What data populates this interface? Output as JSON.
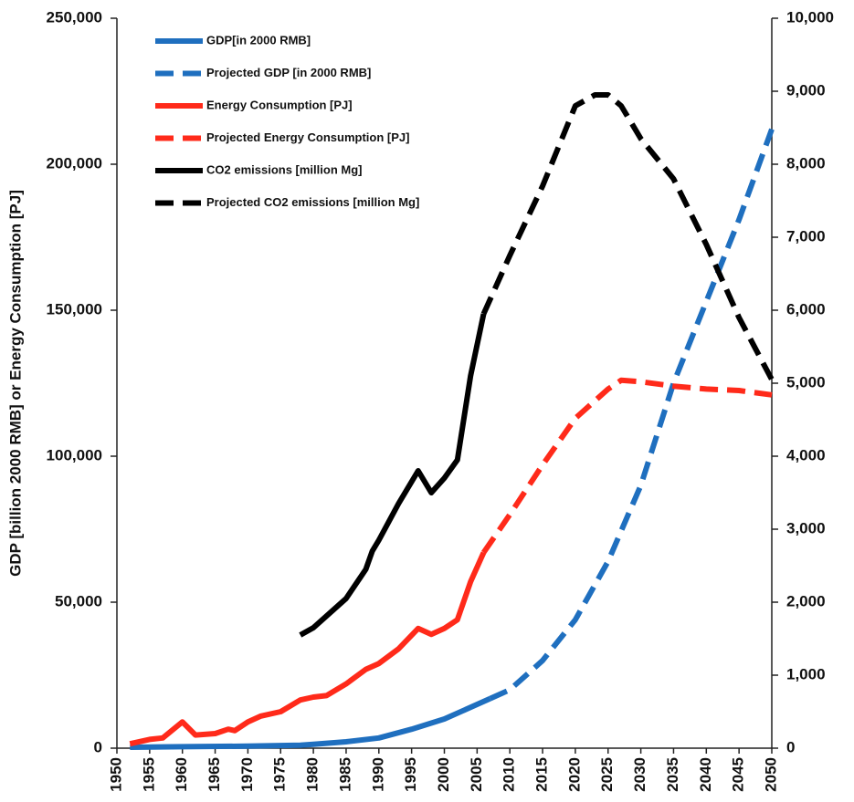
{
  "chart_data": {
    "type": "line",
    "ylabel": "GDP [billion 2000 RMB] or Energy Consumption [PJ]",
    "xlim": [
      1950,
      2050
    ],
    "xticks": [
      1950,
      1955,
      1960,
      1965,
      1970,
      1975,
      1980,
      1985,
      1990,
      1995,
      2000,
      2005,
      2010,
      2015,
      2020,
      2025,
      2030,
      2035,
      2040,
      2045,
      2050
    ],
    "ylim": [
      0,
      250000
    ],
    "yticks": [
      0,
      {
        "value": 50000,
        "label": "50,000"
      },
      {
        "value": 100000,
        "label": "100,000"
      },
      {
        "value": 150000,
        "label": "150,000"
      },
      {
        "value": 200000,
        "label": "200,000"
      },
      {
        "value": 250000,
        "label": "250,000"
      }
    ],
    "y2lim": [
      0,
      10000
    ],
    "y2ticks": [
      0,
      {
        "value": 1000,
        "label": "1,000"
      },
      {
        "value": 2000,
        "label": "2,000"
      },
      {
        "value": 3000,
        "label": "3,000"
      },
      {
        "value": 4000,
        "label": "4,000"
      },
      {
        "value": 5000,
        "label": "5,000"
      },
      {
        "value": 6000,
        "label": "6,000"
      },
      {
        "value": 7000,
        "label": "7,000"
      },
      {
        "value": 8000,
        "label": "8,000"
      },
      {
        "value": 9000,
        "label": "9,000"
      },
      {
        "value": 10000,
        "label": "10,000"
      }
    ],
    "legend": "upper left",
    "series": [
      {
        "name": "GDP[in 2000 RMB]",
        "color": "#1f6fbf",
        "dashed": false,
        "x": [
          1952,
          1960,
          1970,
          1978,
          1980,
          1985,
          1990,
          1995,
          2000,
          2005,
          2007
        ],
        "values": [
          300,
          500,
          700,
          1000,
          1300,
          2200,
          3500,
          6500,
          10000,
          15000,
          17000
        ]
      },
      {
        "name": "Projected GDP [in 2000 RMB]",
        "color": "#1f6fbf",
        "dashed": true,
        "x": [
          2007,
          2010,
          2015,
          2020,
          2025,
          2030,
          2035,
          2040,
          2045,
          2050
        ],
        "values": [
          17000,
          20000,
          30000,
          44000,
          64000,
          90000,
          125000,
          153000,
          181000,
          212000
        ]
      },
      {
        "name": "Energy Consumption [PJ]",
        "color": "#ff2a1a",
        "dashed": false,
        "x": [
          1952,
          1955,
          1957,
          1960,
          1962,
          1965,
          1967,
          1968,
          1970,
          1972,
          1975,
          1978,
          1980,
          1982,
          1985,
          1988,
          1990,
          1993,
          1996,
          1998,
          2000,
          2002,
          2004,
          2006
        ],
        "values": [
          1500,
          3000,
          3500,
          9000,
          4500,
          5000,
          6500,
          6000,
          9000,
          11000,
          12500,
          16500,
          17500,
          18000,
          22000,
          27000,
          29000,
          34000,
          41000,
          39000,
          41000,
          44000,
          57000,
          67000
        ]
      },
      {
        "name": "Projected Energy Consumption [PJ]",
        "color": "#ff2a1a",
        "dashed": true,
        "x": [
          2006,
          2010,
          2015,
          2020,
          2025,
          2027,
          2030,
          2035,
          2040,
          2045,
          2050
        ],
        "values": [
          67000,
          80000,
          97000,
          113000,
          123000,
          126000,
          125500,
          124000,
          123000,
          122500,
          121000
        ]
      },
      {
        "name": "CO2 emissions [million Mg]",
        "color": "#000000",
        "dashed": false,
        "axis": "y2",
        "x": [
          1978,
          1980,
          1985,
          1988,
          1989,
          1990,
          1993,
          1996,
          1998,
          2000,
          2002,
          2004,
          2006
        ],
        "values": [
          1550,
          1650,
          2050,
          2450,
          2700,
          2850,
          3350,
          3800,
          3500,
          3700,
          3950,
          5100,
          5950
        ]
      },
      {
        "name": "Projected CO2 emissions [million Mg]",
        "color": "#000000",
        "dashed": true,
        "axis": "y2",
        "x": [
          2006,
          2010,
          2015,
          2020,
          2023,
          2025,
          2027,
          2030,
          2035,
          2040,
          2045,
          2050
        ],
        "values": [
          5950,
          6750,
          7700,
          8800,
          8950,
          8950,
          8800,
          8350,
          7800,
          6900,
          5900,
          5050
        ]
      }
    ]
  }
}
